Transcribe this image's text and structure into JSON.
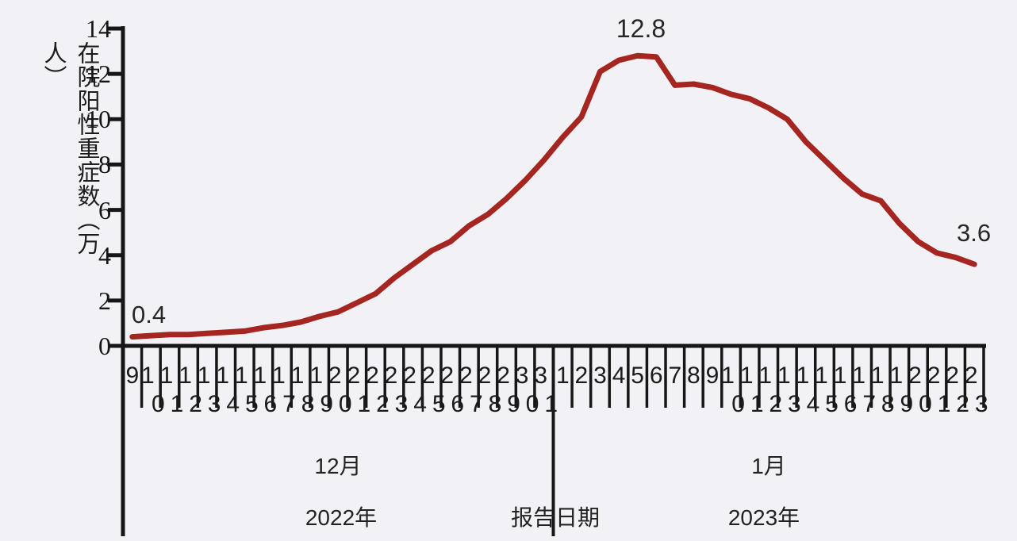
{
  "page": {
    "background": "#f2f1f5"
  },
  "chart_data": {
    "type": "line",
    "title": "",
    "ylabel": "在院阳性重症数（万人）",
    "xlabel": "报告日期",
    "ylim": [
      0,
      14
    ],
    "yticks": [
      0,
      2,
      4,
      6,
      8,
      10,
      12,
      14
    ],
    "grid": false,
    "legend": "none",
    "line_color": "#a52520",
    "axis_color": "#161616",
    "x_groups": [
      {
        "month": "12月",
        "year": "2022年",
        "days": [
          9,
          10,
          11,
          12,
          13,
          14,
          15,
          16,
          17,
          18,
          19,
          20,
          21,
          22,
          23,
          24,
          25,
          26,
          27,
          28,
          29,
          30,
          31
        ]
      },
      {
        "month": "1月",
        "year": "2023年",
        "days": [
          1,
          2,
          3,
          4,
          5,
          6,
          7,
          8,
          9,
          10,
          11,
          12,
          13,
          14,
          15,
          16,
          17,
          18,
          19,
          20,
          21,
          22,
          23
        ]
      }
    ],
    "series": [
      {
        "values": [
          0.4,
          0.45,
          0.5,
          0.5,
          0.55,
          0.6,
          0.65,
          0.8,
          0.9,
          1.05,
          1.3,
          1.5,
          1.9,
          2.3,
          3.0,
          3.6,
          4.2,
          4.6,
          5.3,
          5.8,
          6.5,
          7.3,
          8.2,
          9.2,
          10.1,
          12.1,
          12.6,
          12.8,
          12.75,
          11.5,
          11.55,
          11.4,
          11.1,
          10.9,
          10.5,
          10.0,
          9.0,
          8.2,
          7.4,
          6.7,
          6.4,
          5.4,
          4.6,
          4.1,
          3.9,
          3.6
        ]
      }
    ],
    "annotations": [
      {
        "label": "0.4",
        "day_index": 0,
        "value": 0.4,
        "anchor": "start"
      },
      {
        "label": "12.8",
        "day_index": 27,
        "value": 12.8,
        "anchor": "peak"
      },
      {
        "label": "3.6",
        "day_index": 45,
        "value": 3.6,
        "anchor": "end"
      }
    ]
  }
}
